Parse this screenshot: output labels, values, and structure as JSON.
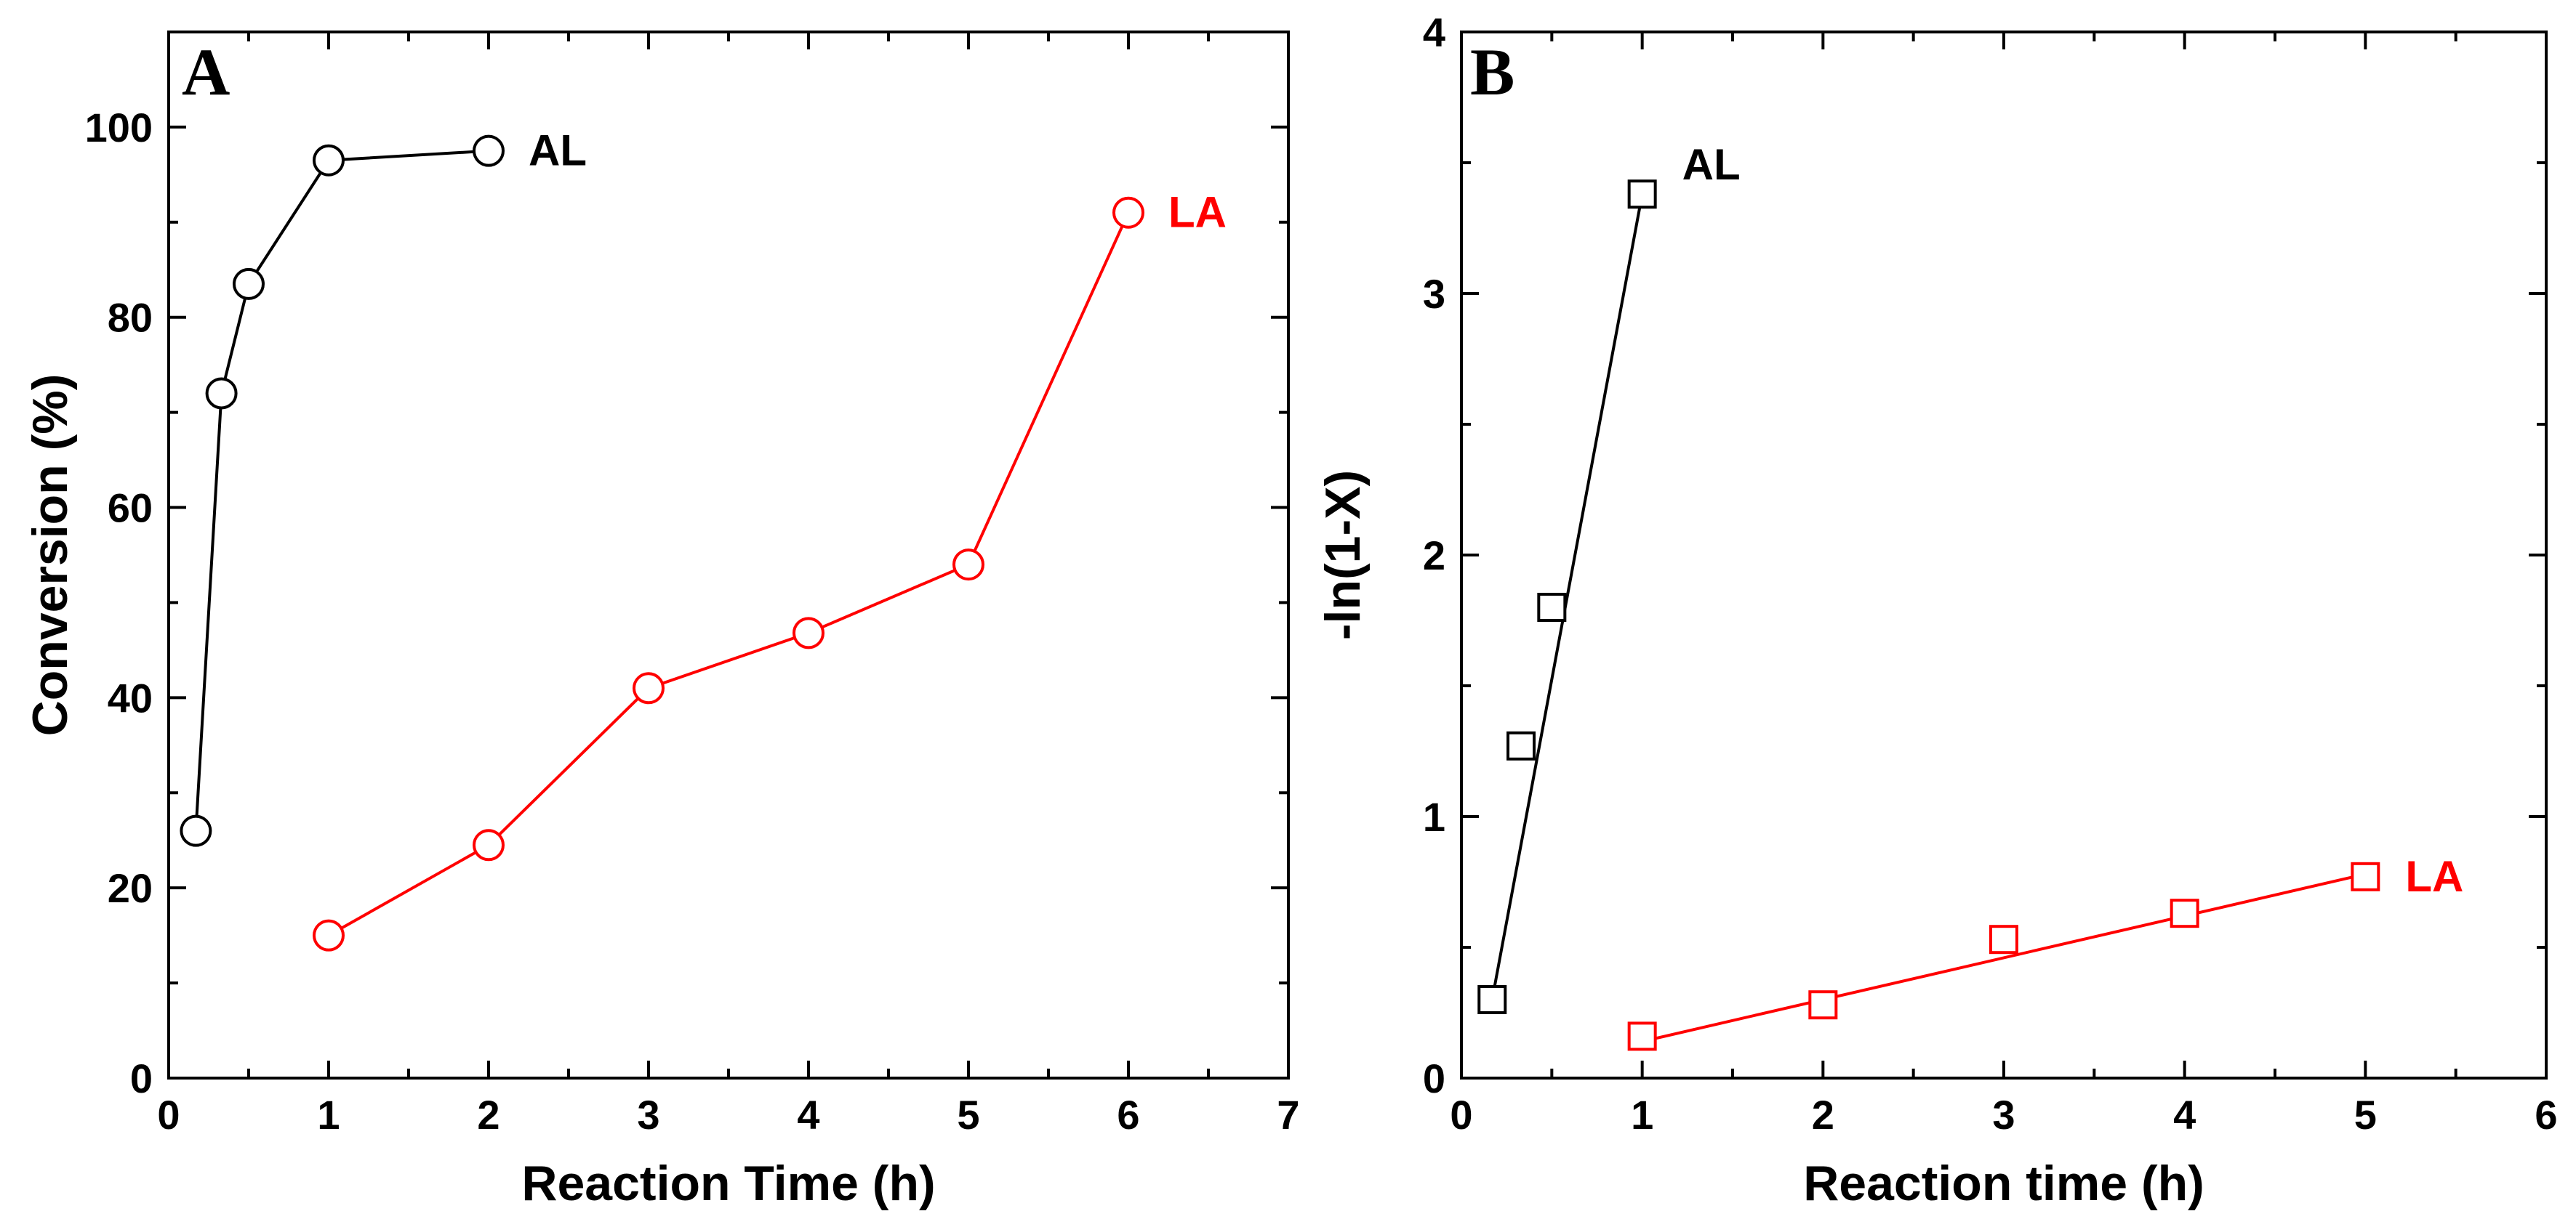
{
  "chart_data": [
    {
      "type": "line",
      "panel_label": "A",
      "xlabel": "Reaction Time (h)",
      "ylabel": "Conversion (%)",
      "xlim": [
        0,
        7
      ],
      "ylim": [
        0,
        110
      ],
      "x_ticks": [
        0,
        1,
        2,
        3,
        4,
        5,
        6,
        7
      ],
      "y_ticks": [
        0,
        20,
        40,
        60,
        80,
        100
      ],
      "marker": "circle",
      "grid": false,
      "series": [
        {
          "name": "AL",
          "color": "#000000",
          "x": [
            0.17,
            0.33,
            0.5,
            1,
            2
          ],
          "y": [
            26,
            72,
            83.5,
            96.5,
            97.5
          ]
        },
        {
          "name": "LA",
          "color": "#ff0000",
          "x": [
            1,
            2,
            3,
            4,
            5,
            6
          ],
          "y": [
            15,
            24.5,
            41,
            46.8,
            54,
            91
          ]
        }
      ]
    },
    {
      "type": "scatter",
      "panel_label": "B",
      "xlabel": "Reaction time (h)",
      "ylabel": "-ln(1-X)",
      "xlim": [
        0,
        6
      ],
      "ylim": [
        0,
        4
      ],
      "x_ticks": [
        0,
        1,
        2,
        3,
        4,
        5,
        6
      ],
      "y_ticks": [
        0,
        1,
        2,
        3,
        4
      ],
      "marker": "square",
      "grid": false,
      "series": [
        {
          "name": "AL",
          "color": "#000000",
          "x": [
            0.17,
            0.33,
            0.5,
            1
          ],
          "y": [
            0.3,
            1.27,
            1.8,
            3.38
          ],
          "fit_line": {
            "x": [
              0.17,
              1
            ],
            "y": [
              0.3,
              3.38
            ]
          }
        },
        {
          "name": "LA",
          "color": "#ff0000",
          "x": [
            1,
            2,
            3,
            4,
            5
          ],
          "y": [
            0.16,
            0.28,
            0.53,
            0.63,
            0.77
          ],
          "fit_line": {
            "x": [
              1,
              5
            ],
            "y": [
              0.14,
              0.78
            ]
          }
        }
      ]
    }
  ]
}
